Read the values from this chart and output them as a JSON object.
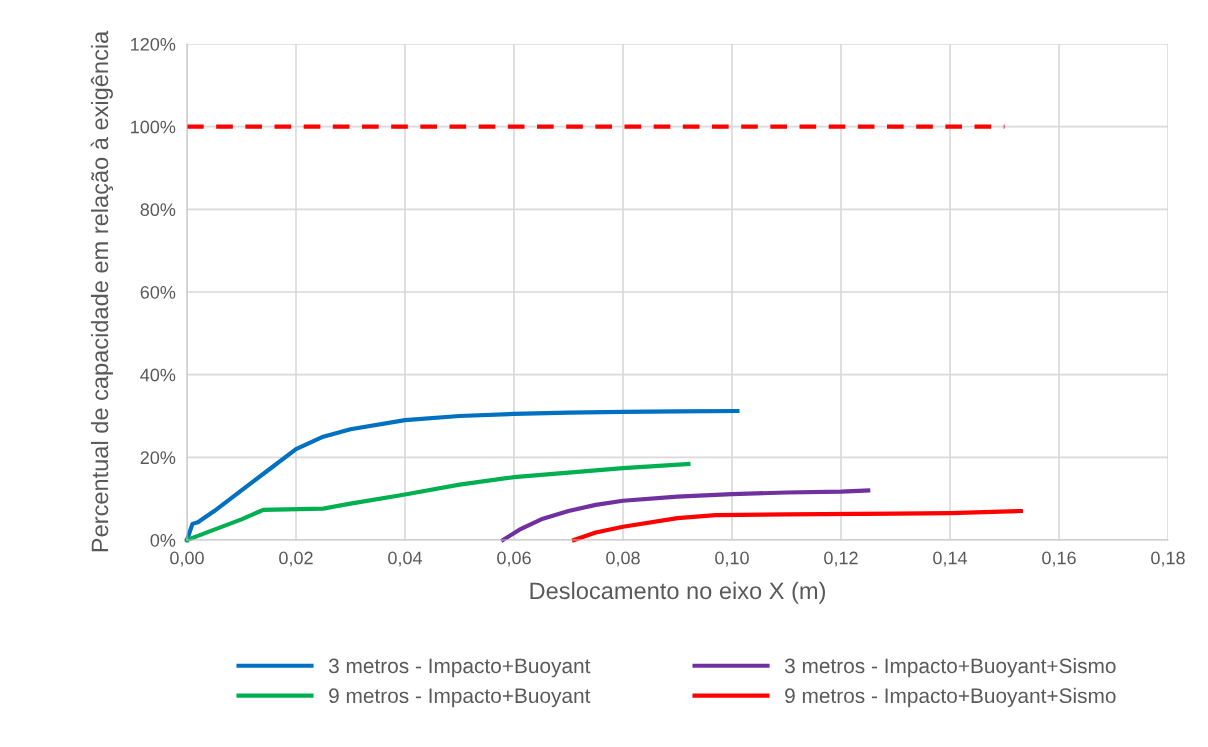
{
  "chart_data": {
    "type": "line",
    "xlabel": "Deslocamento no eixo X (m)",
    "ylabel": "Percentual de capacidade em relação à exigência",
    "xlim": [
      0,
      0.18
    ],
    "xticks": [
      {
        "value": 0,
        "label": "0,00"
      },
      {
        "value": 0.02,
        "label": "0,02"
      },
      {
        "value": 0.04,
        "label": "0,04"
      },
      {
        "value": 0.06,
        "label": "0,06"
      },
      {
        "value": 0.08,
        "label": "0,08"
      },
      {
        "value": 0.1,
        "label": "0,10"
      },
      {
        "value": 0.12,
        "label": "0,12"
      },
      {
        "value": 0.14,
        "label": "0,14"
      },
      {
        "value": 0.16,
        "label": "0,16"
      },
      {
        "value": 0.18,
        "label": "0,18"
      }
    ],
    "ylim": [
      0,
      120
    ],
    "yticks": [
      {
        "value": 0,
        "label": "0%"
      },
      {
        "value": 20,
        "label": "20%"
      },
      {
        "value": 40,
        "label": "40%"
      },
      {
        "value": 60,
        "label": "60%"
      },
      {
        "value": 80,
        "label": "80%"
      },
      {
        "value": 100,
        "label": "100%"
      },
      {
        "value": 120,
        "label": "120%"
      }
    ],
    "grid": true,
    "legend": "bottom",
    "marker": "none",
    "series": [
      {
        "name": "3 metros - Impacto+Buoyant",
        "color": "#0070c0",
        "x": [
          0,
          0.001,
          0.002,
          0.005,
          0.01,
          0.015,
          0.02,
          0.025,
          0.03,
          0.04,
          0.05,
          0.06,
          0.07,
          0.08,
          0.09,
          0.101
        ],
        "values": [
          0,
          3.9,
          4.3,
          7,
          12,
          17,
          22,
          25,
          26.8,
          29,
          30,
          30.5,
          30.8,
          31,
          31.1,
          31.2
        ]
      },
      {
        "name": "9 metros - Impacto+Buoyant",
        "color": "#00b050",
        "x": [
          0,
          0.002,
          0.005,
          0.01,
          0.014,
          0.025,
          0.03,
          0.04,
          0.05,
          0.06,
          0.07,
          0.08,
          0.092
        ],
        "values": [
          0,
          1,
          2.5,
          5,
          7.3,
          7.6,
          8.8,
          11,
          13.4,
          15.2,
          16.3,
          17.4,
          18.4
        ]
      },
      {
        "name": "3 metros - Impacto+Buoyant+Sismo",
        "color": "#7030a0",
        "x": [
          0.058,
          0.061,
          0.065,
          0.07,
          0.075,
          0.08,
          0.09,
          0.1,
          0.11,
          0.12,
          0.125
        ],
        "values": [
          0,
          2.5,
          5,
          7,
          8.5,
          9.5,
          10.5,
          11.1,
          11.5,
          11.7,
          12
        ]
      },
      {
        "name": "9 metros - Impacto+Buoyant+Sismo",
        "color": "#ff0000",
        "x": [
          0.071,
          0.075,
          0.08,
          0.09,
          0.097,
          0.11,
          0.13,
          0.14,
          0.153
        ],
        "values": [
          0,
          1.8,
          3.2,
          5.3,
          6,
          6.2,
          6.4,
          6.5,
          7
        ]
      },
      {
        "color": "#ff0000",
        "line_style": "dashed",
        "x": [
          0,
          0.15
        ],
        "values": [
          100,
          100
        ]
      }
    ]
  }
}
